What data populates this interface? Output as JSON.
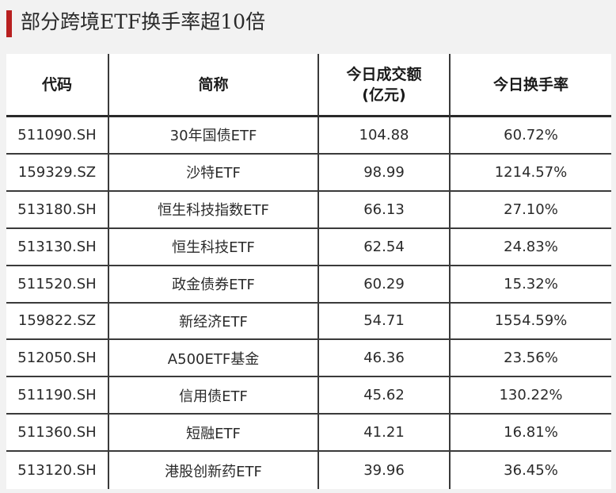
{
  "title": "部分跨境ETF换手率超10倍",
  "headers": {
    "code": "代码",
    "name": "简称",
    "turnover_amount_line1": "今日成交额",
    "turnover_amount_line2": "(亿元)",
    "turnover_rate": "今日换手率"
  },
  "rows": [
    {
      "code": "511090.SH",
      "name": "30年国债ETF",
      "amount": "104.88",
      "rate": "60.72%"
    },
    {
      "code": "159329.SZ",
      "name": "沙特ETF",
      "amount": "98.99",
      "rate": "1214.57%"
    },
    {
      "code": "513180.SH",
      "name": "恒生科技指数ETF",
      "amount": "66.13",
      "rate": "27.10%"
    },
    {
      "code": "513130.SH",
      "name": "恒生科技ETF",
      "amount": "62.54",
      "rate": "24.83%"
    },
    {
      "code": "511520.SH",
      "name": "政金债券ETF",
      "amount": "60.29",
      "rate": "15.32%"
    },
    {
      "code": "159822.SZ",
      "name": "新经济ETF",
      "amount": "54.71",
      "rate": "1554.59%"
    },
    {
      "code": "512050.SH",
      "name": "A500ETF基金",
      "amount": "46.36",
      "rate": "23.56%"
    },
    {
      "code": "511190.SH",
      "name": "信用债ETF",
      "amount": "45.62",
      "rate": "130.22%"
    },
    {
      "code": "511360.SH",
      "name": "短融ETF",
      "amount": "41.21",
      "rate": "16.81%"
    },
    {
      "code": "513120.SH",
      "name": "港股创新药ETF",
      "amount": "39.96",
      "rate": "36.45%"
    }
  ],
  "colors": {
    "accent": "#b82020",
    "background": "#f2f2f2",
    "table_background": "#ffffff",
    "rule": "#3a3a3a"
  }
}
